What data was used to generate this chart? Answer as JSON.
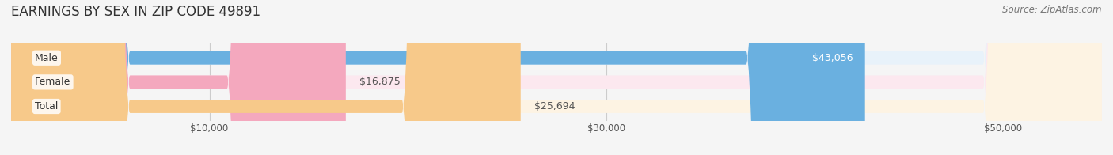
{
  "title": "EARNINGS BY SEX IN ZIP CODE 49891",
  "source": "Source: ZipAtlas.com",
  "categories": [
    "Male",
    "Female",
    "Total"
  ],
  "values": [
    43056,
    16875,
    25694
  ],
  "bar_colors": [
    "#6ab0e0",
    "#f4a8be",
    "#f7c98a"
  ],
  "label_colors": [
    "#ffffff",
    "#555555",
    "#555555"
  ],
  "bg_colors": [
    "#e8f2fa",
    "#fce8ef",
    "#fdf3e3"
  ],
  "value_labels": [
    "$43,056",
    "$16,875",
    "$25,694"
  ],
  "xmin": 0,
  "xmax": 55000,
  "xticks": [
    10000,
    30000,
    50000
  ],
  "xtick_labels": [
    "$10,000",
    "$30,000",
    "$50,000"
  ],
  "title_fontsize": 12,
  "source_fontsize": 8.5,
  "label_fontsize": 9,
  "value_fontsize": 9,
  "background_color": "#f5f5f5"
}
